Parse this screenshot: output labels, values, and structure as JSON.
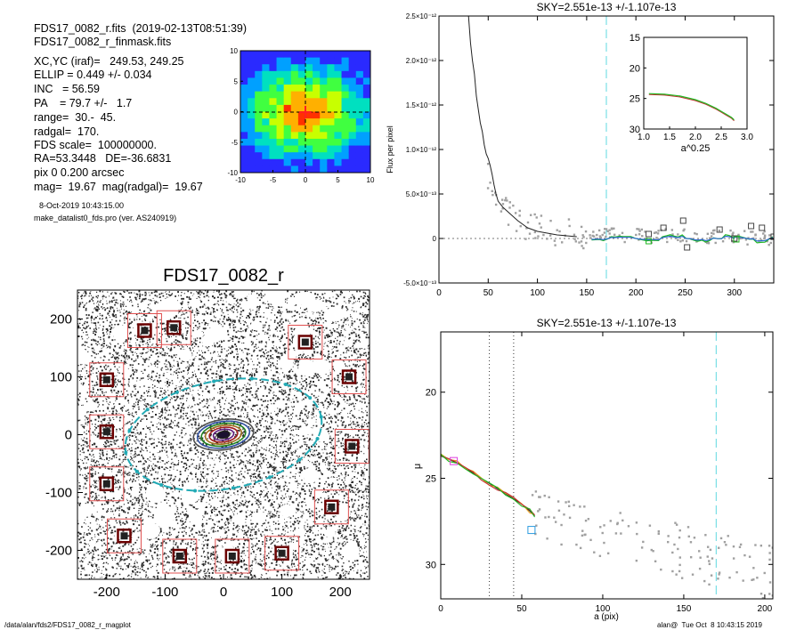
{
  "header": {
    "line1": "FDS17_0082_r.fits  (2019-02-13T08:51:39)",
    "line2": "FDS17_0082_r_finmask.fits",
    "info": [
      "XC,YC (iraf)=   249.53, 249.25",
      "ELLIP = 0.449 +/- 0.034",
      "INC   = 56.59",
      "PA    = 79.7 +/-   1.7",
      "range=  30.-  45.",
      "radgal=  170.",
      "FDS scale=  100000000.",
      "RA=53.3448   DE=-36.6831",
      "pix 0 0.200 arcsec",
      "mag=  19.67  mag(radgal)=  19.67"
    ],
    "date": "8-Oct-2019 10:43:15.00",
    "program": "make_datalist0_fds.pro (ver. AS240919)"
  },
  "footer": {
    "path": "/data/alan/fds2/FDS17_0082_r_magplot",
    "user": "alan@  Tue Oct  8 10:43:15 2019"
  },
  "colors": {
    "mask_box": "#e05050",
    "ellipse": "#22aab5",
    "cyan_line": "#5fd8e0",
    "green": "#22b822",
    "orange": "#e8a020",
    "data_gray": "#a0a0a0"
  },
  "chart_data": [
    {
      "id": "contour-map",
      "type": "heatmap",
      "title": "",
      "xlim": [
        -10,
        10
      ],
      "ylim": [
        -10,
        10
      ],
      "xticks": [
        -10,
        -5,
        0,
        5,
        10
      ],
      "yticks": [
        10,
        5,
        0,
        -5,
        -10
      ],
      "colors": [
        "#2a2aff",
        "#00a0ff",
        "#00e0c0",
        "#40ff40",
        "#c8ff00",
        "#ffb000",
        "#ff3000"
      ]
    },
    {
      "id": "galaxy-image",
      "type": "scatter",
      "title": "FDS17_0082_r",
      "xlim": [
        -250,
        250
      ],
      "ylim": [
        -250,
        250
      ],
      "xticks": [
        -200,
        -100,
        0,
        100,
        200
      ],
      "yticks": [
        200,
        100,
        0,
        -100,
        -200
      ],
      "ellipse": {
        "center": [
          0,
          0
        ],
        "semi_major": 170,
        "ellip": 0.449,
        "pa_deg": 79.7
      },
      "masked_stars": [
        {
          "x": -200,
          "y": 95
        },
        {
          "x": -135,
          "y": 180
        },
        {
          "x": -85,
          "y": 185
        },
        {
          "x": -200,
          "y": 5
        },
        {
          "x": -200,
          "y": -85
        },
        {
          "x": -170,
          "y": -175
        },
        {
          "x": -75,
          "y": -210
        },
        {
          "x": 15,
          "y": -210
        },
        {
          "x": 100,
          "y": -205
        },
        {
          "x": 185,
          "y": -125
        },
        {
          "x": 220,
          "y": -20
        },
        {
          "x": 215,
          "y": 100
        },
        {
          "x": 140,
          "y": 160
        }
      ]
    },
    {
      "id": "sky-profile",
      "type": "scatter",
      "title": "SKY=2.551e-13 +/-1.107e-13",
      "xlabel": "",
      "ylabel": "Flux per pixel",
      "xlim": [
        0,
        340
      ],
      "ylim": [
        -5e-13,
        2.5e-12
      ],
      "xticks": [
        0,
        50,
        100,
        150,
        200,
        250,
        300
      ],
      "yticks": [
        -5e-13,
        0,
        5e-13,
        1e-12,
        1.5e-12,
        2e-12,
        2.5e-12
      ],
      "ytick_labels": [
        "-5.0×10⁻¹³",
        "0",
        "5.0×10⁻¹³",
        "1.0×10⁻¹²",
        "1.5×10⁻¹²",
        "2.0×10⁻¹²",
        "2.5×10⁻¹²"
      ],
      "radgal": 170,
      "profile": {
        "x": [
          30,
          32,
          34,
          36,
          38,
          40,
          42,
          44,
          46,
          48,
          50,
          52,
          54,
          56,
          58,
          60,
          65,
          70,
          80,
          90,
          100,
          120,
          140
        ],
        "y": [
          2.5e-12,
          2.2e-12,
          2e-12,
          1.85e-12,
          1.6e-12,
          1.45e-12,
          1.3e-12,
          1.2e-12,
          1.05e-12,
          9.5e-13,
          9e-13,
          8.2e-13,
          7.2e-13,
          6e-13,
          5e-13,
          4.2e-13,
          3.5e-13,
          3e-13,
          2e-13,
          1.2e-13,
          8e-14,
          4e-14,
          2e-14
        ]
      },
      "outer_boxes": [
        {
          "x": 213,
          "y": 5e-14
        },
        {
          "x": 228,
          "y": 1.2e-13
        },
        {
          "x": 248,
          "y": 2e-13
        },
        {
          "x": 252,
          "y": -1e-13
        },
        {
          "x": 285,
          "y": 1e-13
        },
        {
          "x": 300,
          "y": 0.0
        },
        {
          "x": 317,
          "y": 1.4e-13
        },
        {
          "x": 328,
          "y": 1.2e-13
        },
        {
          "x": 340,
          "y": 2e-14
        }
      ],
      "inset": {
        "xlabel": "a^0.25",
        "xlim": [
          1.0,
          3.0
        ],
        "ylim": [
          30,
          15
        ],
        "xticks": [
          1.0,
          1.5,
          2.0,
          2.5,
          3.0
        ],
        "yticks": [
          15,
          20,
          25,
          30
        ],
        "x": [
          1.1,
          1.4,
          1.7,
          2.0,
          2.2,
          2.4,
          2.5,
          2.6,
          2.7,
          2.75
        ],
        "y": [
          24.2,
          24.3,
          24.6,
          25.2,
          25.8,
          26.6,
          27.1,
          27.6,
          28.1,
          28.5
        ]
      }
    },
    {
      "id": "mu-profile",
      "type": "line",
      "title": "SKY=2.551e-13 +/-1.107e-13",
      "xlabel": "a (pix)",
      "ylabel": "μ",
      "xlim": [
        0,
        205
      ],
      "ylim": [
        32,
        16.5
      ],
      "xticks": [
        0,
        50,
        100,
        150,
        200
      ],
      "yticks": [
        20,
        25,
        30
      ],
      "range_lines": [
        30,
        45
      ],
      "radgal": 170,
      "profile": {
        "x": [
          0,
          5,
          10,
          15,
          20,
          25,
          30,
          35,
          40,
          45,
          50,
          55,
          58
        ],
        "y": [
          23.7,
          23.9,
          24.1,
          24.4,
          24.7,
          25.0,
          25.3,
          25.6,
          25.9,
          26.2,
          26.5,
          26.9,
          27.2
        ]
      },
      "boxes": [
        {
          "x": 8,
          "y": 24.0,
          "color": "#e040e0"
        },
        {
          "x": 56,
          "y": 28.0,
          "color": "#2a9be0"
        }
      ]
    }
  ]
}
